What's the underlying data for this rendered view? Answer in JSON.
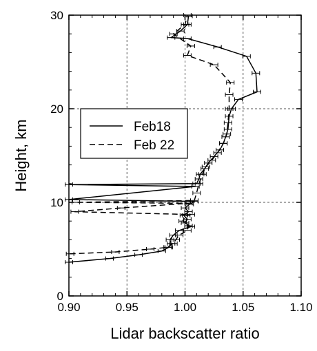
{
  "chart_data": {
    "type": "line",
    "xlabel": "Lidar backscatter ratio",
    "ylabel": "Height, km",
    "xlim": [
      0.9,
      1.1
    ],
    "ylim": [
      0,
      30
    ],
    "xticks": [
      0.9,
      0.95,
      1.0,
      1.05,
      1.1
    ],
    "xtick_labels": [
      "0.90",
      "0.95",
      "1.00",
      "1.05",
      "1.10"
    ],
    "yticks": [
      0,
      10,
      20,
      30
    ],
    "ytick_labels": [
      "0",
      "10",
      "20",
      "30"
    ],
    "grid": "dashed at inner ticks",
    "legend_position": "upper-left",
    "series": [
      {
        "name": "Feb18",
        "style": "solid",
        "color": "#000000",
        "points": [
          [
            0.9,
            3.6
          ],
          [
            0.935,
            4.0
          ],
          [
            0.96,
            4.4
          ],
          [
            0.98,
            4.8
          ],
          [
            0.986,
            5.2
          ],
          [
            0.988,
            5.6
          ],
          [
            0.987,
            6.0
          ],
          [
            0.99,
            6.5
          ],
          [
            0.995,
            7.0
          ],
          [
            1.005,
            7.4
          ],
          [
            1.0,
            7.8
          ],
          [
            1.002,
            8.2
          ],
          [
            0.999,
            8.6
          ],
          [
            1.003,
            9.0
          ],
          [
            1.0,
            9.4
          ],
          [
            1.004,
            9.8
          ],
          [
            1.008,
            10.1
          ],
          [
            0.9,
            10.3
          ],
          [
            1.009,
            11.7
          ],
          [
            0.9,
            11.9
          ],
          [
            1.01,
            12.0
          ],
          [
            1.012,
            12.5
          ],
          [
            1.013,
            13.0
          ],
          [
            1.017,
            13.6
          ],
          [
            1.02,
            14.2
          ],
          [
            1.025,
            14.9
          ],
          [
            1.03,
            15.6
          ],
          [
            1.033,
            16.3
          ],
          [
            1.035,
            17.0
          ],
          [
            1.037,
            17.8
          ],
          [
            1.038,
            19.2
          ],
          [
            1.04,
            20.0
          ],
          [
            1.046,
            21.0
          ],
          [
            1.062,
            21.8
          ],
          [
            1.061,
            23.8
          ],
          [
            1.053,
            25.6
          ],
          [
            1.028,
            26.6
          ],
          [
            1.002,
            27.5
          ],
          [
            0.988,
            27.6
          ],
          [
            0.996,
            28.3
          ],
          [
            1.002,
            29.0
          ],
          [
            1.003,
            29.9
          ]
        ]
      },
      {
        "name": "Feb 22",
        "style": "dashed",
        "color": "#000000",
        "points": [
          [
            0.901,
            4.5
          ],
          [
            0.94,
            4.7
          ],
          [
            0.97,
            5.0
          ],
          [
            0.985,
            5.2
          ],
          [
            0.99,
            5.6
          ],
          [
            0.992,
            6.0
          ],
          [
            0.995,
            6.5
          ],
          [
            1.002,
            7.0
          ],
          [
            1.003,
            7.5
          ],
          [
            0.998,
            8.0
          ],
          [
            1.001,
            8.6
          ],
          [
            1.005,
            8.7
          ],
          [
            0.905,
            9.0
          ],
          [
            0.945,
            9.4
          ],
          [
            1.003,
            9.9
          ],
          [
            0.906,
            10.0
          ],
          [
            1.008,
            10.2
          ],
          [
            1.01,
            11.0
          ],
          [
            1.012,
            12.0
          ],
          [
            1.015,
            13.0
          ],
          [
            1.018,
            13.8
          ],
          [
            1.023,
            14.5
          ],
          [
            1.028,
            15.3
          ],
          [
            1.033,
            16.3
          ],
          [
            1.036,
            17.3
          ],
          [
            1.037,
            18.5
          ],
          [
            1.038,
            20.0
          ],
          [
            1.038,
            21.5
          ],
          [
            1.039,
            22.8
          ],
          [
            1.025,
            24.7
          ],
          [
            1.002,
            25.7
          ],
          [
            1.005,
            26.7
          ],
          [
            0.99,
            28.0
          ],
          [
            1.0,
            29.0
          ],
          [
            1.002,
            30.0
          ]
        ]
      }
    ]
  }
}
